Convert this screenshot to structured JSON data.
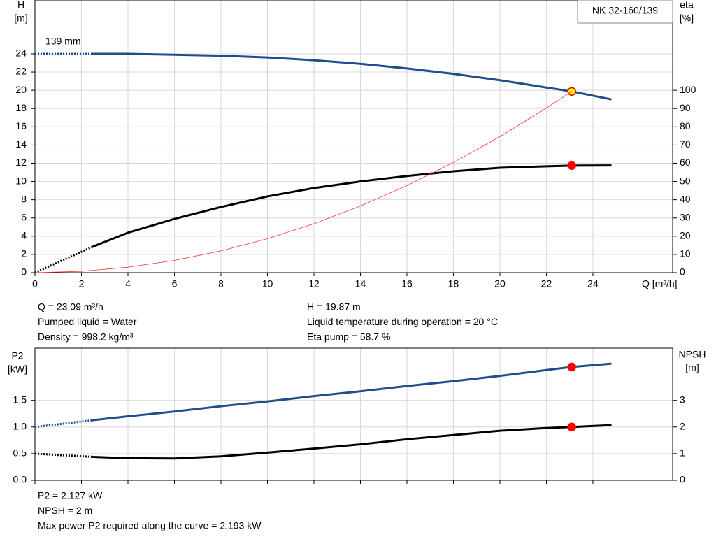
{
  "chart_data": [
    {
      "type": "line",
      "model_label": "NK 32-160/139",
      "annotation": "139 mm",
      "ylabel": [
        "H",
        "[m]"
      ],
      "y2label": [
        "eta",
        "[%]"
      ],
      "xlabel": "Q [m³/h]",
      "xlim": [
        0,
        27.43
      ],
      "xticks": [
        0,
        2,
        4,
        6,
        8,
        10,
        12,
        14,
        16,
        18,
        20,
        22,
        24
      ],
      "xtick_labels": true,
      "ylim": [
        0,
        29.9
      ],
      "yticks": [
        0,
        2,
        4,
        6,
        8,
        10,
        12,
        14,
        16,
        18,
        20,
        22,
        24
      ],
      "y2lim": [
        0,
        149.5
      ],
      "y2ticks": [
        0,
        10,
        20,
        30,
        40,
        50,
        60,
        70,
        80,
        90,
        100
      ],
      "grid": true,
      "series": [
        {
          "color": "#1f4e8c",
          "width": 3,
          "axis": "y",
          "dashed_segments": 1,
          "marker_index": 12,
          "marker_color": "#ffef00",
          "marker_edge": "#e00000",
          "x": [
            0,
            2.5,
            4,
            6,
            8,
            10,
            12,
            14,
            16,
            18,
            20,
            22,
            23.09,
            24.8
          ],
          "values": [
            24.0,
            24.0,
            24.0,
            23.9,
            23.8,
            23.6,
            23.3,
            22.9,
            22.4,
            21.8,
            21.1,
            20.3,
            19.87,
            19.0
          ]
        },
        {
          "color": "#000000",
          "width": 3,
          "axis": "y2",
          "dashed_segments": 1,
          "marker_index": 12,
          "marker_color": "#ff0000",
          "marker_edge": "#ff0000",
          "x": [
            0,
            2.5,
            4,
            6,
            8,
            10,
            12,
            14,
            16,
            18,
            20,
            22,
            23.09,
            24.8
          ],
          "values": [
            0,
            14.3,
            21.9,
            29.5,
            36,
            41.8,
            46.4,
            50,
            53,
            55.6,
            57.5,
            58.3,
            58.7,
            58.8
          ]
        },
        {
          "color": "#ff3030",
          "width": 0.8,
          "axis": "y",
          "dashed_segments": 0,
          "x": [
            0,
            2,
            4,
            6,
            8,
            10,
            12,
            14,
            16,
            18,
            20,
            22,
            23.09
          ],
          "values": [
            0,
            0.15,
            0.6,
            1.34,
            2.39,
            3.73,
            5.37,
            7.31,
            9.55,
            12.08,
            14.92,
            18.05,
            19.87
          ]
        }
      ],
      "info": [
        [
          "Q = 23.09 m³/h",
          "Pumped liquid = Water",
          "Density = 998.2 kg/m³"
        ],
        [
          "H = 19.87 m",
          "Liquid temperature during operation = 20 °C",
          "Eta pump = 58.7 %"
        ]
      ]
    },
    {
      "type": "line",
      "ylabel": [
        "P2",
        "[kW]"
      ],
      "y2label": [
        "NPSH",
        "[m]"
      ],
      "xlim": [
        0,
        27.43
      ],
      "xticks": [
        0,
        2,
        4,
        6,
        8,
        10,
        12,
        14,
        16,
        18,
        20,
        22,
        24
      ],
      "xtick_labels": false,
      "ylim": [
        0,
        2.48
      ],
      "yticks": [
        {
          "value": 0,
          "label": "0.0"
        },
        0.5,
        {
          "value": 1,
          "label": "1.0"
        },
        1.5
      ],
      "y2lim": [
        0,
        4.96
      ],
      "y2ticks": [
        0,
        1,
        2,
        3
      ],
      "grid": true,
      "series": [
        {
          "color": "#1f4e8c",
          "width": 3,
          "axis": "y",
          "dashed_segments": 1,
          "marker_index": 12,
          "marker_color": "#ff0000",
          "marker_edge": "#ff0000",
          "x": [
            0,
            2.5,
            4,
            6,
            8,
            10,
            12,
            14,
            16,
            18,
            20,
            22,
            23.09,
            24.8
          ],
          "values": [
            1.0,
            1.128,
            1.2,
            1.29,
            1.39,
            1.48,
            1.58,
            1.67,
            1.77,
            1.86,
            1.96,
            2.07,
            2.127,
            2.19
          ]
        },
        {
          "color": "#000000",
          "width": 3,
          "axis": "y2",
          "dashed_segments": 1,
          "marker_index": 12,
          "marker_color": "#ff0000",
          "marker_edge": "#ff0000",
          "x": [
            0,
            2.5,
            4,
            6,
            8,
            10,
            12,
            14,
            16,
            18,
            20,
            22,
            23.09,
            24.8
          ],
          "values": [
            1.0,
            0.88,
            0.83,
            0.82,
            0.9,
            1.04,
            1.19,
            1.35,
            1.54,
            1.7,
            1.86,
            1.96,
            2.0,
            2.07
          ]
        }
      ],
      "info": [
        [
          "P2 = 2.127 kW",
          "NPSH = 2 m",
          "Max power P2 required along the curve = 2.193 kW"
        ]
      ]
    }
  ]
}
